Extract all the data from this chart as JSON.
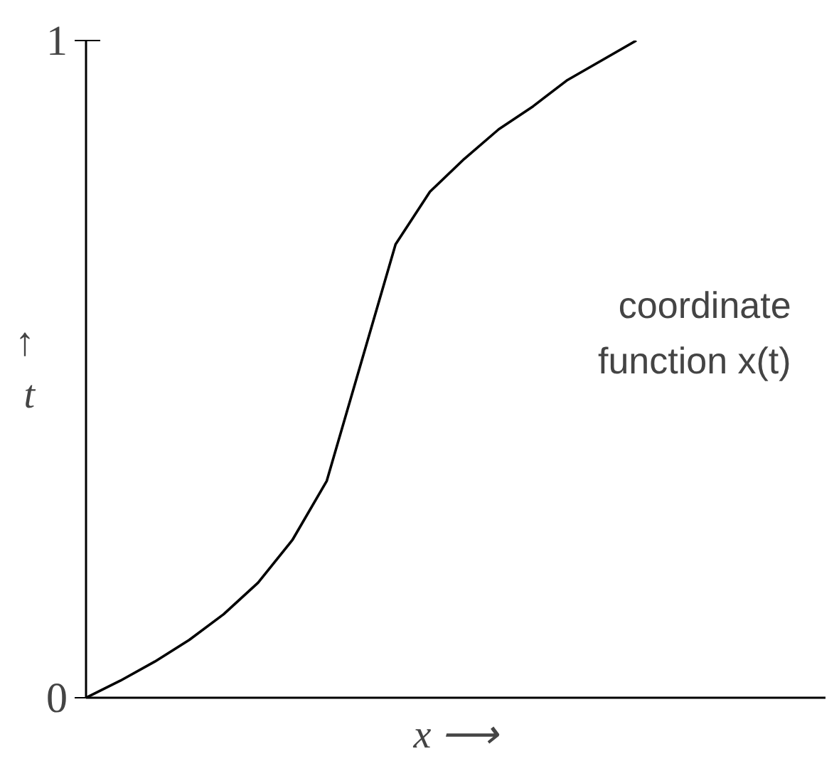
{
  "chart_data": {
    "type": "line",
    "xlabel": "x ⟶",
    "ylabel": "↑\nt",
    "categories": [
      null,
      null,
      null,
      null,
      null,
      null,
      null,
      null,
      null,
      null,
      null,
      null,
      null,
      null,
      null,
      null,
      null,
      null,
      null,
      null,
      null,
      null
    ],
    "series": [
      {
        "color": "#000000",
        "values": [
          0,
          0.026,
          0.055,
          0.088,
          0.127,
          0.175,
          0.24,
          0.33,
          0.51,
          0.69,
          0.77,
          0.82,
          0.865,
          0.9,
          0.94,
          0.97,
          1.0,
          null,
          null,
          null,
          null,
          null
        ]
      }
    ],
    "ylim": [
      0,
      1
    ],
    "yticks": [
      0,
      1
    ],
    "tick_labels": "y",
    "grid": false,
    "marker": "none",
    "line_style": "solid",
    "annotations": [
      "coordinate\nfunction x(t)"
    ]
  }
}
